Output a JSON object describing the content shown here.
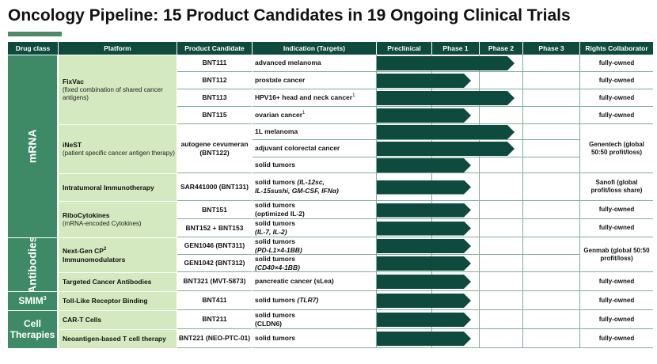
{
  "title": "Oncology Pipeline: 15 Product Candidates in 19 Ongoing Clinical Trials",
  "colors": {
    "header": "#0f4a3e",
    "group": "#3e8a66",
    "platform": "#d5e9c1",
    "arrow": "#0f4a3e",
    "accent": "#4e8a6a"
  },
  "columns": [
    "Drug class",
    "Platform",
    "Product Candidate",
    "Indication (Targets)",
    "Preclinical",
    "Phase 1",
    "Phase 2",
    "Phase 3",
    "Rights Collaborator"
  ],
  "drug_classes": [
    {
      "label": "mRNA"
    },
    {
      "label": "Antibodies"
    },
    {
      "label": "SMIM",
      "sup": "3"
    },
    {
      "label": "Cell Therapies"
    }
  ],
  "platforms": [
    {
      "name": "FixVac",
      "sub": "(fixed combination of shared cancer antigens)"
    },
    {
      "name": "iNeST",
      "sub": "(patient specific cancer antigen therapy)"
    },
    {
      "name": "Intratumoral Immunotherapy",
      "sub": ""
    },
    {
      "name": "RiboCytokines",
      "sub": "(mRNA-encoded Cytokines)"
    },
    {
      "name": "Next-Gen CP",
      "sup": "2",
      "name2": "Immunomodulators",
      "sub": ""
    },
    {
      "name": "Targeted Cancer Antibodies",
      "sub": ""
    },
    {
      "name": "Toll-Like Receptor Binding",
      "sub": ""
    },
    {
      "name": "CAR-T Cells",
      "sub": ""
    },
    {
      "name": "Neoantigen-based T cell therapy",
      "sub": ""
    }
  ],
  "candidates": [
    "BNT111",
    "BNT112",
    "BNT113",
    "BNT115",
    "autogene cevumeran (BNT122)",
    "SAR441000 (BNT131)",
    "BNT151",
    "BNT152 + BNT153",
    "GEN1046 (BNT311)",
    "GEN1042 (BNT312)",
    "BNT321 (MVT-5873)",
    "BNT411",
    "BNT211",
    "BNT221 (NEO-PTC-01)"
  ],
  "rows": [
    {
      "ind": "advanced melanoma",
      "sup": "",
      "ital": "",
      "ind2": "",
      "ital2": "",
      "stage": 2
    },
    {
      "ind": "prostate cancer",
      "sup": "",
      "ital": "",
      "ind2": "",
      "ital2": "",
      "stage": 1
    },
    {
      "ind": "HPV16+ head and neck cancer",
      "sup": "1",
      "ital": "",
      "ind2": "",
      "ital2": "",
      "stage": 2
    },
    {
      "ind": "ovarian cancer",
      "sup": "1",
      "ital": "",
      "ind2": "",
      "ital2": "",
      "stage": 1
    },
    {
      "ind": "1L melanoma",
      "sup": "",
      "ital": "",
      "ind2": "",
      "ital2": "",
      "stage": 2
    },
    {
      "ind": "adjuvant  colorectal cancer",
      "sup": "",
      "ital": "",
      "ind2": "",
      "ital2": "",
      "stage": 2
    },
    {
      "ind": "solid tumors",
      "sup": "",
      "ital": "",
      "ind2": "",
      "ital2": "",
      "stage": 1
    },
    {
      "ind": "solid tumors ",
      "sup": "",
      "ital": "(IL-12sc,",
      "ind2": "",
      "ital2": "IL-15sushi, GM-CSF, IFNα)",
      "stage": 1
    },
    {
      "ind": "solid tumors",
      "sup": "",
      "ital": "",
      "ind2": "(optimized IL-2)",
      "ital2": "",
      "stage": 1
    },
    {
      "ind": "solid tumors",
      "sup": "",
      "ital": "",
      "ind2": "",
      "ital2": "(IL-7, IL-2)",
      "stage": 1
    },
    {
      "ind": "solid tumors",
      "sup": "",
      "ital": "",
      "ind2": "",
      "ital2": "(PD-L1×4-1BB)",
      "stage": 1
    },
    {
      "ind": "solid tumors",
      "sup": "",
      "ital": "",
      "ind2": "",
      "ital2": "(CD40×4-1BB)",
      "stage": 1
    },
    {
      "ind": "pancreatic cancer (sLea)",
      "sup": "",
      "ital": "",
      "ind2": "",
      "ital2": "",
      "stage": 1
    },
    {
      "ind": "solid tumors ",
      "sup": "",
      "ital": "(TLR7)",
      "ind2": "",
      "ital2": "",
      "stage": 1
    },
    {
      "ind": "solid tumors",
      "sup": "",
      "ital": "",
      "ind2": "(CLDN6)",
      "ital2": "",
      "stage": 1
    },
    {
      "ind": "solid tumors",
      "sup": "",
      "ital": "",
      "ind2": "",
      "ital2": "",
      "stage": 1
    }
  ],
  "rights": [
    "fully-owned",
    "fully-owned",
    "fully-owned",
    "fully-owned",
    "Genentech (global 50:50 profit/loss)",
    "Sanofi (global profit/loss share)",
    "fully-owned",
    "fully-owned",
    "Genmab (global 50:50 profit/loss)",
    "fully-owned",
    "fully-owned",
    "fully-owned",
    "fully-owned"
  ]
}
